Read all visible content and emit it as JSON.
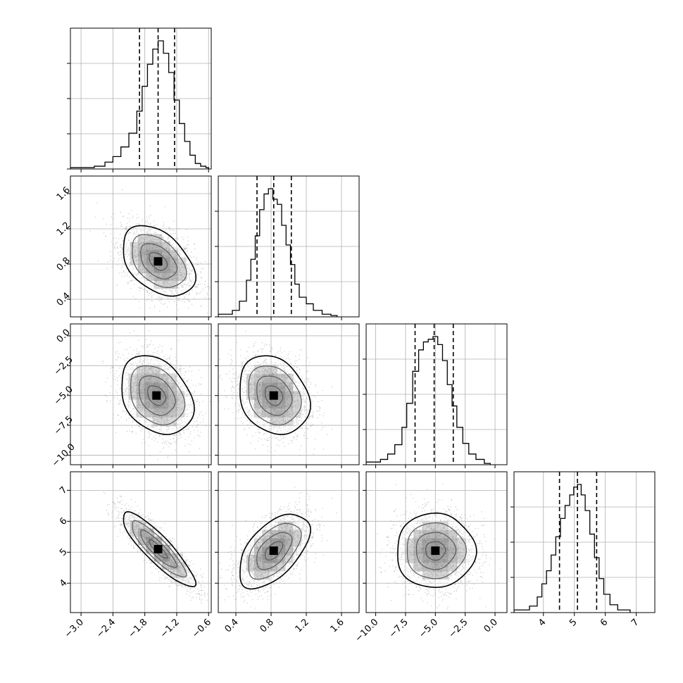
{
  "chart_data": {
    "type": "corner",
    "n_params": 4,
    "grid": true,
    "axes": [
      {
        "range": [
          -3.2,
          -0.55
        ],
        "ticks": [
          -3.0,
          -2.4,
          -1.8,
          -1.2,
          -0.6
        ],
        "tick_labels": [
          "−3.0",
          "−2.4",
          "−1.8",
          "−1.2",
          "−0.6"
        ]
      },
      {
        "range": [
          0.2,
          1.8
        ],
        "ticks": [
          0.4,
          0.8,
          1.2,
          1.6
        ],
        "tick_labels": [
          "0.4",
          "0.8",
          "1.2",
          "1.6"
        ]
      },
      {
        "range": [
          -10.8,
          1.0
        ],
        "ticks": [
          0.0,
          -2.5,
          -5.0,
          -7.5,
          -10.0
        ],
        "tick_labels": [
          "0.0",
          "−2.5",
          "−5.0",
          "−7.5",
          "−10.0"
        ]
      },
      {
        "range": [
          3.05,
          7.6
        ],
        "ticks": [
          4,
          5,
          6,
          7
        ],
        "tick_labels": [
          "4",
          "5",
          "6",
          "7"
        ]
      }
    ],
    "histograms": [
      {
        "param": 0,
        "bin_edges": [
          -3.2,
          -2.75,
          -2.55,
          -2.4,
          -2.25,
          -2.1,
          -1.95,
          -1.85,
          -1.75,
          -1.65,
          -1.55,
          -1.45,
          -1.35,
          -1.25,
          -1.15,
          -1.05,
          -0.95,
          -0.85,
          -0.75,
          -0.65,
          -0.6
        ],
        "counts": [
          0.01,
          0.02,
          0.05,
          0.09,
          0.16,
          0.26,
          0.42,
          0.6,
          0.76,
          0.87,
          0.93,
          0.84,
          0.7,
          0.5,
          0.33,
          0.2,
          0.1,
          0.04,
          0.02,
          0.01
        ],
        "quantiles": [
          -1.9,
          -1.55,
          -1.24
        ]
      },
      {
        "param": 1,
        "bin_edges": [
          0.2,
          0.36,
          0.44,
          0.52,
          0.57,
          0.62,
          0.67,
          0.72,
          0.77,
          0.82,
          0.87,
          0.92,
          0.97,
          1.02,
          1.07,
          1.12,
          1.2,
          1.28,
          1.38,
          1.48,
          1.55
        ],
        "counts": [
          0.02,
          0.05,
          0.12,
          0.28,
          0.44,
          0.62,
          0.82,
          0.94,
          0.98,
          0.9,
          0.86,
          0.7,
          0.55,
          0.4,
          0.25,
          0.15,
          0.1,
          0.05,
          0.02,
          0.01
        ],
        "quantiles": [
          0.64,
          0.83,
          1.03
        ]
      },
      {
        "param": 2,
        "bin_edges": [
          -10.8,
          -9.6,
          -9.0,
          -8.4,
          -7.8,
          -7.4,
          -6.9,
          -6.4,
          -6.0,
          -5.6,
          -5.2,
          -4.8,
          -4.4,
          -4.0,
          -3.6,
          -3.2,
          -2.7,
          -2.2,
          -1.6,
          -0.9,
          -0.4
        ],
        "counts": [
          0.02,
          0.04,
          0.08,
          0.15,
          0.28,
          0.46,
          0.7,
          0.86,
          0.92,
          0.94,
          0.96,
          0.9,
          0.78,
          0.6,
          0.44,
          0.28,
          0.16,
          0.08,
          0.04,
          0.01
        ],
        "quantiles": [
          -6.7,
          -5.1,
          -3.5
        ]
      },
      {
        "param": 3,
        "bin_edges": [
          3.05,
          3.55,
          3.8,
          3.95,
          4.1,
          4.25,
          4.4,
          4.55,
          4.7,
          4.85,
          4.98,
          5.1,
          5.22,
          5.35,
          5.5,
          5.65,
          5.8,
          5.95,
          6.15,
          6.4,
          6.8
        ],
        "counts": [
          0.02,
          0.05,
          0.12,
          0.22,
          0.32,
          0.44,
          0.58,
          0.72,
          0.82,
          0.9,
          0.96,
          0.98,
          0.9,
          0.78,
          0.6,
          0.42,
          0.26,
          0.14,
          0.06,
          0.02
        ],
        "quantiles": [
          4.52,
          5.1,
          5.72
        ]
      }
    ],
    "pairs": [
      {
        "x_param": 0,
        "y_param": 1,
        "center": [
          -1.55,
          0.83
        ],
        "sd": [
          0.34,
          0.2
        ],
        "rho": -0.42
      },
      {
        "x_param": 0,
        "y_param": 2,
        "center": [
          -1.58,
          -5.0
        ],
        "sd": [
          0.34,
          1.65
        ],
        "rho": -0.3
      },
      {
        "x_param": 1,
        "y_param": 2,
        "center": [
          0.83,
          -5.0
        ],
        "sd": [
          0.2,
          1.65
        ],
        "rho": -0.22
      },
      {
        "x_param": 0,
        "y_param": 3,
        "center": [
          -1.55,
          5.1
        ],
        "sd": [
          0.34,
          0.6
        ],
        "rho": -0.88
      },
      {
        "x_param": 1,
        "y_param": 3,
        "center": [
          0.83,
          5.05
        ],
        "sd": [
          0.2,
          0.6
        ],
        "rho": 0.55
      },
      {
        "x_param": 2,
        "y_param": 3,
        "center": [
          -5.0,
          5.05
        ],
        "sd": [
          1.65,
          0.6
        ],
        "rho": 0.0
      }
    ],
    "contour_levels_sigma": [
      0.5,
      1.0,
      1.5,
      2.0
    ],
    "colors": {
      "line": "#000000",
      "grid": "#b0b0b0",
      "density": "#000000",
      "points": "#8a8a8a"
    }
  }
}
